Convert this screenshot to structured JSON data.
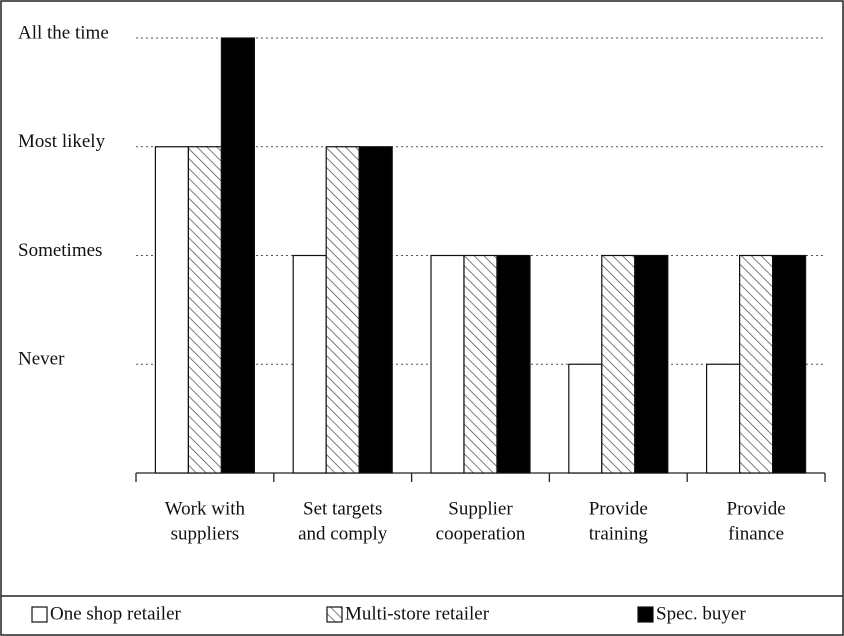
{
  "chart_data": {
    "type": "bar",
    "categories": [
      [
        "Work with",
        "suppliers"
      ],
      [
        "Set targets",
        "and comply"
      ],
      [
        "Supplier",
        "cooperation"
      ],
      [
        "Provide",
        "training"
      ],
      [
        "Provide",
        "finance"
      ]
    ],
    "series": [
      {
        "name": "One shop retailer",
        "color": "#ffffff",
        "hatch": false,
        "values": [
          3,
          2,
          2,
          1,
          1
        ]
      },
      {
        "name": "Multi-store retailer",
        "color": "#ffffff",
        "hatch": true,
        "values": [
          3,
          3,
          2,
          2,
          2
        ]
      },
      {
        "name": "Spec. buyer",
        "color": "#000000",
        "hatch": false,
        "values": [
          4,
          3,
          2,
          2,
          2
        ]
      }
    ],
    "ylim": [
      0,
      4
    ],
    "yticks": [
      {
        "value": 1,
        "label": "Never"
      },
      {
        "value": 2,
        "label": "Sometimes"
      },
      {
        "value": 3,
        "label": "Most likely"
      },
      {
        "value": 4,
        "label": "All the time"
      }
    ],
    "grid": true,
    "legend": "bottom"
  }
}
